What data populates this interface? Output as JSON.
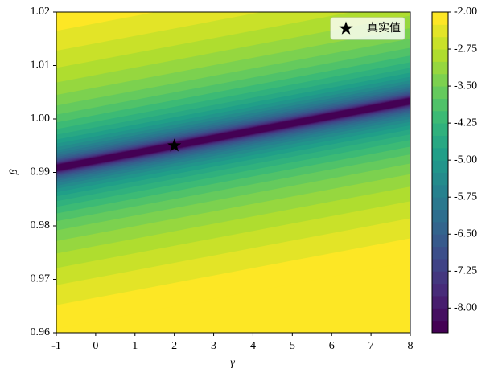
{
  "chart_data": {
    "type": "contour",
    "xlabel": "γ",
    "ylabel": "β",
    "xlim": [
      -1,
      8
    ],
    "xticks": [
      -1,
      0,
      1,
      2,
      3,
      4,
      5,
      6,
      7,
      8
    ],
    "ylim": [
      0.96,
      1.02
    ],
    "yticks": [
      0.96,
      0.97,
      0.98,
      0.99,
      {
        "value": 1,
        "label": "1.00"
      },
      1.01,
      1.02
    ],
    "colormap": "viridis",
    "levels": [
      -8.5,
      -8.25,
      -8.0,
      -7.75,
      -7.5,
      -7.25,
      -7.0,
      -6.75,
      -6.5,
      -6.25,
      -6.0,
      -5.75,
      -5.5,
      -5.25,
      -5.0,
      -4.75,
      -4.5,
      -4.25,
      -4.0,
      -3.75,
      -3.5,
      -3.25,
      -3.0,
      -2.75,
      -2.5,
      -2.25,
      -2.0
    ],
    "clim": [
      -8.5,
      -2.0
    ],
    "cticks": [
      {
        "value": -2,
        "label": "-2.00"
      },
      {
        "value": -2.75,
        "label": "-2.75"
      },
      {
        "value": -3.5,
        "label": "-3.50"
      },
      {
        "value": -4.25,
        "label": "-4.25"
      },
      {
        "value": -5,
        "label": "-5.00"
      },
      {
        "value": -5.75,
        "label": "-5.75"
      },
      {
        "value": -6.5,
        "label": "-6.50"
      },
      {
        "value": -7.25,
        "label": "-7.25"
      },
      {
        "value": -8,
        "label": "-8.00"
      }
    ],
    "series": [
      {
        "name": "真实值",
        "color": "#000000",
        "marker": "star",
        "x": [
          2
        ],
        "values": [
          0.995
        ]
      }
    ],
    "legend": "upper right"
  }
}
